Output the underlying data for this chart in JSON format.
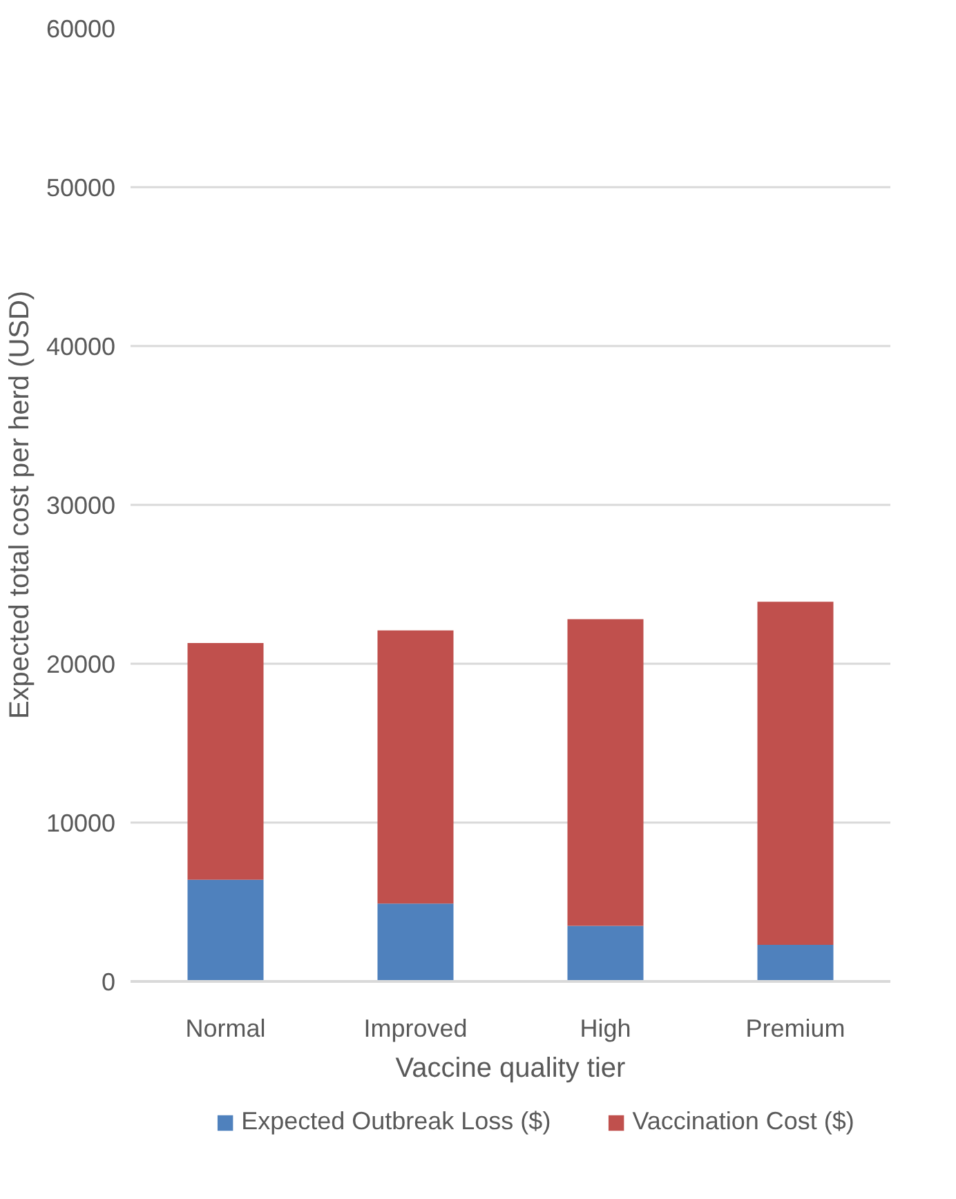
{
  "chart_data": {
    "type": "bar",
    "stacked": true,
    "xlabel": "Vaccine quality tier",
    "ylabel": "Expected total cost per herd (USD)",
    "categories": [
      "Normal",
      "Improved",
      "High",
      "Premium"
    ],
    "series": [
      {
        "name": "Expected Outbreak Loss ($)",
        "color": "#4f81bd",
        "values": [
          6400,
          4900,
          3500,
          2300
        ]
      },
      {
        "name": "Vaccination Cost ($)",
        "color": "#c0504d",
        "values": [
          14900,
          17200,
          19300,
          21600
        ]
      }
    ],
    "ylim": [
      0,
      60000
    ],
    "yticks": [
      0,
      10000,
      20000,
      30000,
      40000,
      50000,
      60000
    ],
    "grid": "y",
    "legend": "bottom"
  }
}
